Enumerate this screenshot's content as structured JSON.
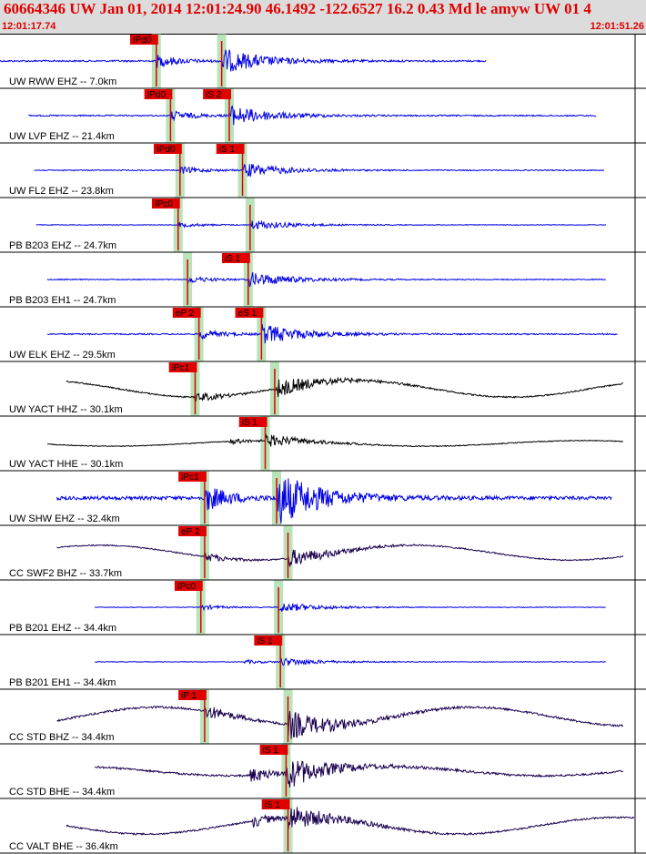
{
  "header": {
    "title": "60664346 UW Jan 01, 2014 12:01:24.90   46.1492 -122.6527 16.2 0.43 Md le amyw UW 01   4",
    "time_start": "12:01:17.74",
    "time_end": "12:01:51.26"
  },
  "colors": {
    "highpass": "#0000e6",
    "broadband": "#1a0050",
    "accel": "#000000",
    "pick": "#e00000",
    "band": "#b9e3b9"
  },
  "chart_data": {
    "type": "line",
    "x_range_seconds": [
      0,
      33.52
    ],
    "traces": [
      {
        "label": "UW RWW EHZ -- 7.0km",
        "color": "#0000e6",
        "amp": 0.25,
        "long": 0,
        "start": 0.0,
        "end": 25.7,
        "p": {
          "label": "IPd0",
          "t": 8.25
        },
        "s": {
          "label": "",
          "t": 11.7
        }
      },
      {
        "label": "UW LVP EHZ -- 21.4km",
        "color": "#0000e6",
        "amp": 0.2,
        "long": 0,
        "start": 1.5,
        "end": 31.5,
        "p": {
          "label": "IPd0",
          "t": 9.0
        },
        "s": {
          "label": "iS 2",
          "t": 12.1
        }
      },
      {
        "label": "UW FL2 EHZ -- 23.8km",
        "color": "#0000e6",
        "amp": 0.15,
        "long": 0,
        "start": 1.8,
        "end": 31.9,
        "p": {
          "label": "IPd0",
          "t": 9.5
        },
        "s": {
          "label": "iS 1",
          "t": 12.8
        }
      },
      {
        "label": "PB B203 EHZ -- 24.7km",
        "color": "#0000e6",
        "amp": 0.1,
        "long": 0,
        "start": 1.9,
        "end": 32.0,
        "p": {
          "label": "IPc0",
          "t": 9.4
        },
        "s": {
          "label": "",
          "t": 13.2
        }
      },
      {
        "label": "PB B203 EH1 -- 24.7km",
        "color": "#0000e6",
        "amp": 0.15,
        "long": 0,
        "start": 2.5,
        "end": 32.0,
        "p": {
          "label": "",
          "t": 9.9
        },
        "s": {
          "label": "iS 1",
          "t": 13.1
        }
      },
      {
        "label": "UW ELK EHZ -- 29.5km",
        "color": "#0000e6",
        "amp": 0.2,
        "long": 0,
        "start": 2.5,
        "end": 32.6,
        "p": {
          "label": "eP 2",
          "t": 10.5
        },
        "s": {
          "label": "eS 1",
          "t": 13.8
        }
      },
      {
        "label": "UW YACT HHZ -- 30.1km",
        "color": "#000000",
        "amp": 0.2,
        "long": 0.9,
        "start": 3.5,
        "end": 32.9,
        "p": {
          "label": "iPc1",
          "t": 10.3
        },
        "s": {
          "label": "",
          "t": 14.5
        }
      },
      {
        "label": "UW YACT HHE -- 30.1km",
        "color": "#000000",
        "amp": 0.12,
        "long": 0.3,
        "start": 2.5,
        "end": 32.9,
        "p": {
          "label": "",
          "t": 0
        },
        "s": {
          "label": "iS 1",
          "t": 14.0
        }
      },
      {
        "label": "UW SHW EHZ -- 32.4km",
        "color": "#0000e6",
        "amp": 0.55,
        "long": 0,
        "start": 3.0,
        "end": 32.3,
        "p": {
          "label": "iPc1",
          "t": 10.8
        },
        "s": {
          "label": "",
          "t": 14.6
        }
      },
      {
        "label": "CC SWF2 BHZ -- 33.7km",
        "color": "#1a0050",
        "amp": 0.18,
        "long": 0.8,
        "start": 3.0,
        "end": 32.9,
        "p": {
          "label": "eP 2",
          "t": 10.8
        },
        "s": {
          "label": "",
          "t": 15.2
        }
      },
      {
        "label": "PB B201 EHZ -- 34.4km",
        "color": "#0000e6",
        "amp": 0.1,
        "long": 0,
        "start": 5.0,
        "end": 32.0,
        "p": {
          "label": "IPc0",
          "t": 10.6
        },
        "s": {
          "label": "",
          "t": 14.7
        }
      },
      {
        "label": "PB B201 EH1 -- 34.4km",
        "color": "#0000e6",
        "amp": 0.08,
        "long": 0,
        "start": 5.0,
        "end": 32.0,
        "p": {
          "label": "",
          "t": 0
        },
        "s": {
          "label": "iS 1",
          "t": 14.8
        }
      },
      {
        "label": "CC STD BHZ -- 34.4km",
        "color": "#1a0050",
        "amp": 0.3,
        "long": 1.0,
        "start": 3.0,
        "end": 32.9,
        "p": {
          "label": "iP 1",
          "t": 10.8
        },
        "s": {
          "label": "",
          "t": 15.2
        }
      },
      {
        "label": "CC STD BHE -- 34.4km",
        "color": "#1a0050",
        "amp": 0.3,
        "long": 0.5,
        "start": 5.0,
        "end": 32.9,
        "p": {
          "label": "",
          "t": 0
        },
        "s": {
          "label": "iS 1",
          "t": 15.1
        }
      },
      {
        "label": "CC VALT BHE -- 36.4km",
        "color": "#1a0050",
        "amp": 0.25,
        "long": 0.9,
        "start": 3.5,
        "end": 33.5,
        "p": {
          "label": "",
          "t": 0
        },
        "s": {
          "label": "iS 1",
          "t": 15.2
        }
      }
    ]
  }
}
